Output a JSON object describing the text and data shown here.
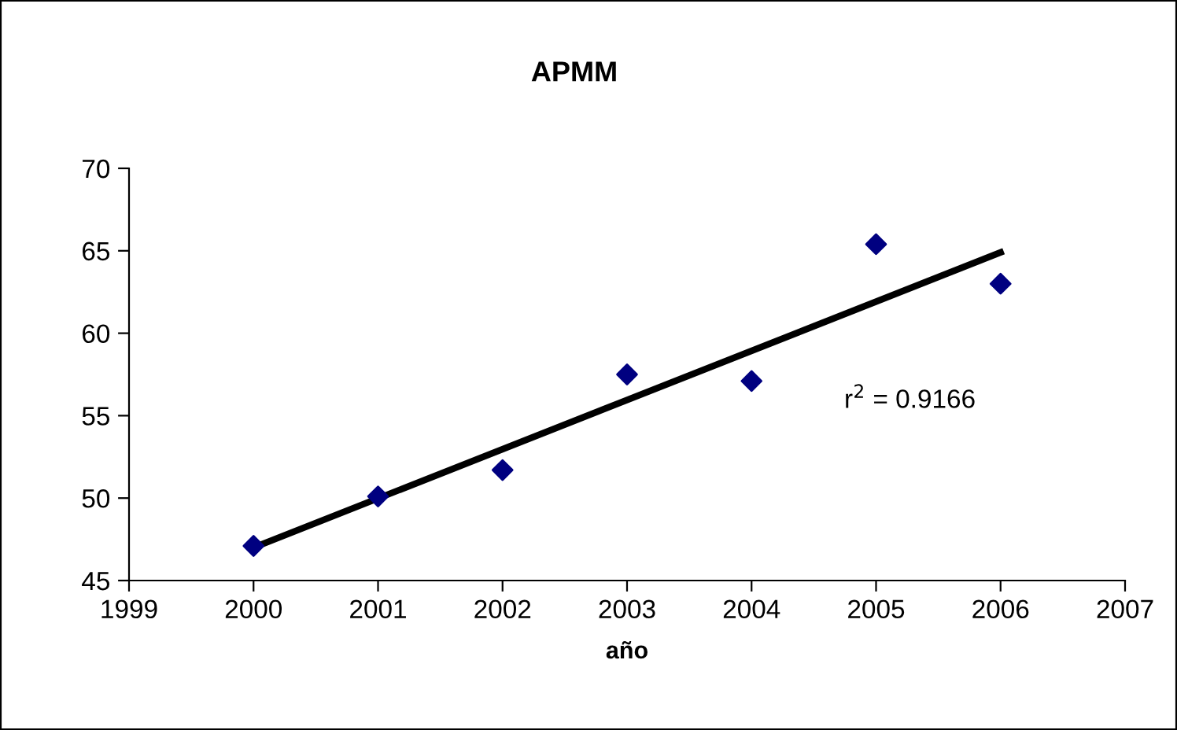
{
  "chart_data": {
    "type": "scatter",
    "title": "APMM",
    "xlabel": "año",
    "x": [
      2000,
      2001,
      2002,
      2003,
      2004,
      2005,
      2006
    ],
    "series": [
      {
        "color": "#000080",
        "marker": "diamond",
        "values": [
          47.1,
          50.1,
          51.7,
          57.5,
          57.1,
          65.4,
          63.0
        ]
      },
      {
        "type": "line",
        "color": "#000000",
        "marker": "none",
        "line_style": "solid",
        "x": [
          2000,
          2006
        ],
        "values": [
          47.0,
          64.9
        ]
      }
    ],
    "annotations": [
      "r$^{2}$ = 0.9166"
    ],
    "xlim": [
      1999,
      2007
    ],
    "xticks": [
      1999,
      2000,
      2001,
      2002,
      2003,
      2004,
      2005,
      2006,
      2007
    ],
    "ylim": [
      45,
      70
    ],
    "yticks": [
      45,
      50,
      55,
      60,
      65,
      70
    ],
    "grid": false,
    "legend": false
  }
}
